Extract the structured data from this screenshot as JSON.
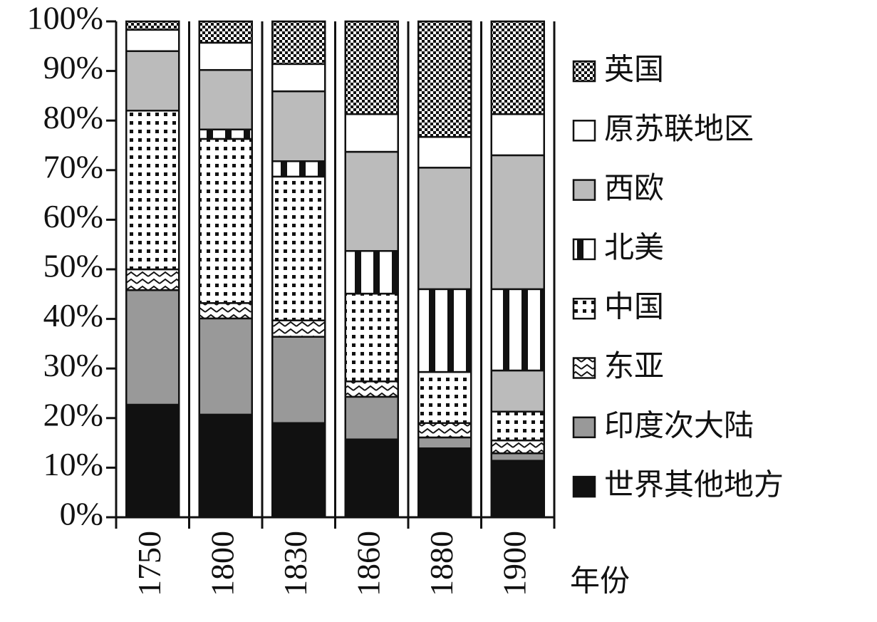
{
  "chart_data": {
    "type": "stacked_bar",
    "x_label": "年份",
    "categories": [
      "1750",
      "1800",
      "1830",
      "1860",
      "1880",
      "1900"
    ],
    "ylim": [
      0,
      100
    ],
    "yticks": [
      {
        "value": 0,
        "label": "0%"
      },
      {
        "value": 10,
        "label": "10%"
      },
      {
        "value": 20,
        "label": "20%"
      },
      {
        "value": 30,
        "label": "30%"
      },
      {
        "value": 40,
        "label": "40%"
      },
      {
        "value": 50,
        "label": "50%"
      },
      {
        "value": 60,
        "label": "60%"
      },
      {
        "value": 70,
        "label": "70%"
      },
      {
        "value": 80,
        "label": "80%"
      },
      {
        "value": 90,
        "label": "90%"
      },
      {
        "value": 100,
        "label": "100%"
      }
    ],
    "series": [
      {
        "name": "世界其他地方",
        "color": "#111111",
        "pattern": "none",
        "values": [
          22.7,
          20.7,
          19.0,
          15.7,
          13.9,
          11.4
        ]
      },
      {
        "name": "印度次大陆",
        "color": "#999999",
        "pattern": "none",
        "values": [
          23.1,
          19.4,
          17.4,
          8.6,
          2.2,
          1.5
        ]
      },
      {
        "name": "东亚",
        "color": "#ffffff",
        "pattern": "zigzag",
        "values": [
          4.2,
          3.1,
          3.3,
          3.1,
          2.9,
          2.6
        ]
      },
      {
        "name": "中国",
        "color": "#ffffff",
        "pattern": "dots",
        "values": [
          32.0,
          33.1,
          29.0,
          17.7,
          10.3,
          5.8
        ]
      },
      {
        "color": "#bbbbbb",
        "pattern": "none",
        "values": [
          null,
          null,
          null,
          null,
          null,
          8.3
        ]
      },
      {
        "name": "北美",
        "color": "#ffffff",
        "pattern": "stripes",
        "values": [
          0,
          1.9,
          3.1,
          8.6,
          16.7,
          16.4
        ]
      },
      {
        "name": "西欧",
        "color": "#bbbbbb",
        "pattern": "none",
        "values": [
          12.0,
          12.0,
          14.1,
          20.0,
          24.5,
          27.0
        ]
      },
      {
        "name": "原苏联地区",
        "color": "#ffffff",
        "pattern": "none",
        "values": [
          4.3,
          5.5,
          5.5,
          7.6,
          6.2,
          8.3
        ]
      },
      {
        "name": "英国",
        "color": "#ffffff",
        "pattern": "checker",
        "values": [
          1.7,
          4.3,
          8.6,
          18.7,
          23.3,
          18.7
        ]
      }
    ]
  }
}
